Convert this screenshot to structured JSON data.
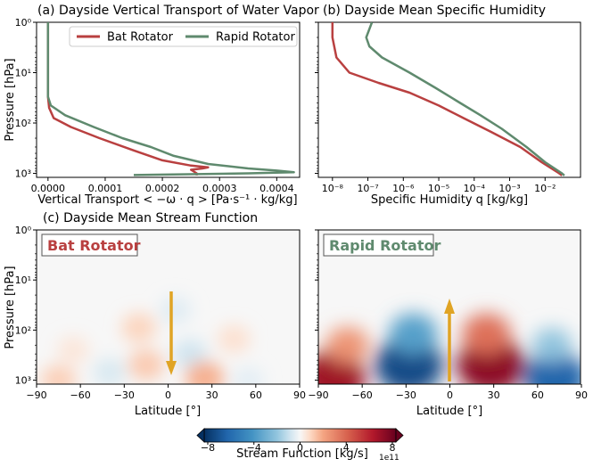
{
  "panels": {
    "a": {
      "title": "(a) Dayside Vertical Transport of Water Vapor",
      "xlabel": "Vertical Transport  < −ω · q > [Pa·s⁻¹ ·  kg/kg]",
      "ylabel": "Pressure [hPa]"
    },
    "b": {
      "title": "(b) Dayside Mean Specific Humidity",
      "xlabel": "Specific Humidity q [kg/kg]"
    },
    "c": {
      "title": "(c) Dayside Mean Stream Function",
      "ylabel": "Pressure [hPa]",
      "xlabel_left": "Latitude [°]",
      "xlabel_right": "Latitude [°]",
      "label_left": "Bat Rotator",
      "label_right": "Rapid Rotator"
    }
  },
  "legend": {
    "bat": "Bat Rotator",
    "rapid": "Rapid Rotator"
  },
  "colorbar": {
    "label": "Stream Function [kg/s]",
    "offset_text": "1e11",
    "ticks": [
      "−8",
      "−4",
      "0",
      "4",
      "8"
    ]
  },
  "pressure_ticks": [
    "10⁰",
    "10¹",
    "10²",
    "10³"
  ],
  "chart_data": [
    {
      "type": "line",
      "panel": "a",
      "title": "(a) Dayside Vertical Transport of Water Vapor",
      "xlabel": "Vertical Transport  < −ω · q > [Pa·s⁻¹ ·  kg/kg]",
      "ylabel": "Pressure [hPa]",
      "xlim": [
        -2e-05,
        0.00044
      ],
      "ylim": [
        1200,
        1
      ],
      "y_scale": "log",
      "x_ticks": [
        "0.0000",
        "0.0001",
        "0.0002",
        "0.0003",
        "0.0004"
      ],
      "colors": {
        "Bat Rotator": "#b94040",
        "Rapid Rotator": "#5f8a6e"
      },
      "legend_position": "top",
      "series": [
        {
          "name": "Bat Rotator",
          "points": [
            [
              0.0,
              1
            ],
            [
              0.0,
              10
            ],
            [
              0.0,
              30
            ],
            [
              2e-06,
              50
            ],
            [
              1e-05,
              80
            ],
            [
              4e-05,
              120
            ],
            [
              9e-05,
              200
            ],
            [
              0.00015,
              350
            ],
            [
              0.0002,
              550
            ],
            [
              0.00025,
              700
            ],
            [
              0.00028,
              760
            ],
            [
              0.00027,
              800
            ],
            [
              0.00025,
              850
            ],
            [
              0.00026,
              1000
            ],
            [
              0.00026,
              1100
            ]
          ]
        },
        {
          "name": "Rapid Rotator",
          "points": [
            [
              0.0,
              1
            ],
            [
              0.0,
              10
            ],
            [
              0.0,
              30
            ],
            [
              5e-06,
              45
            ],
            [
              3e-05,
              70
            ],
            [
              8e-05,
              120
            ],
            [
              0.00013,
              200
            ],
            [
              0.00018,
              300
            ],
            [
              0.00022,
              450
            ],
            [
              0.00028,
              650
            ],
            [
              0.00035,
              800
            ],
            [
              0.0004,
              880
            ],
            [
              0.00043,
              950
            ],
            [
              0.00035,
              1000
            ],
            [
              0.00015,
              1080
            ]
          ]
        }
      ]
    },
    {
      "type": "line",
      "panel": "b",
      "title": "(b) Dayside Mean Specific Humidity",
      "xlabel": "Specific Humidity q [kg/kg]",
      "x_scale": "log",
      "y_scale": "log",
      "xlim": [
        4e-09,
        0.1
      ],
      "ylim": [
        1200,
        1
      ],
      "x_ticks": [
        "10⁻⁸",
        "10⁻⁷",
        "10⁻⁶",
        "10⁻⁵",
        "10⁻⁴",
        "10⁻³",
        "10⁻²"
      ],
      "series": [
        {
          "name": "Bat Rotator",
          "points": [
            [
              1e-08,
              1
            ],
            [
              1e-08,
              2
            ],
            [
              1.3e-08,
              5
            ],
            [
              3e-08,
              10
            ],
            [
              2e-07,
              16
            ],
            [
              1.5e-06,
              25
            ],
            [
              1e-05,
              45
            ],
            [
              5e-05,
              80
            ],
            [
              0.0003,
              150
            ],
            [
              0.002,
              300
            ],
            [
              0.008,
              600
            ],
            [
              0.025,
              1000
            ],
            [
              0.03,
              1100
            ]
          ]
        },
        {
          "name": "Rapid Rotator",
          "points": [
            [
              1.3e-07,
              1
            ],
            [
              9e-08,
              2
            ],
            [
              1.1e-07,
              3
            ],
            [
              2.5e-07,
              5
            ],
            [
              1.5e-06,
              10
            ],
            [
              8e-06,
              20
            ],
            [
              4e-05,
              40
            ],
            [
              0.00015,
              70
            ],
            [
              0.0006,
              130
            ],
            [
              0.003,
              300
            ],
            [
              0.01,
              600
            ],
            [
              0.03,
              1000
            ],
            [
              0.035,
              1100
            ]
          ]
        }
      ]
    },
    {
      "type": "heatmap",
      "panel": "c",
      "title": "(c) Dayside Mean Stream Function",
      "xlabel": "Latitude [°]",
      "ylabel": "Pressure [hPa]",
      "xlim": [
        -90,
        90
      ],
      "ylim": [
        1200,
        1
      ],
      "y_scale": "log",
      "x_ticks": [
        -90,
        -60,
        -30,
        0,
        30,
        60,
        90
      ],
      "colorbar": {
        "label": "Stream Function [kg/s]",
        "scale": "1e11",
        "range": [
          -8,
          8
        ],
        "colormap": "RdBu_r"
      },
      "fields": [
        {
          "name": "Bat Rotator",
          "arrow": "down",
          "cells": [
            {
              "lat": -75,
              "p": 1000,
              "value": 1.2
            },
            {
              "lat": -65,
              "p": 250,
              "value": 0.6
            },
            {
              "lat": -40,
              "p": 700,
              "value": -0.8
            },
            {
              "lat": -20,
              "p": 90,
              "value": 1.1
            },
            {
              "lat": -15,
              "p": 500,
              "value": 1.3
            },
            {
              "lat": 5,
              "p": 40,
              "value": -0.6
            },
            {
              "lat": 15,
              "p": 300,
              "value": -1.0
            },
            {
              "lat": 25,
              "p": 900,
              "value": 1.8
            },
            {
              "lat": 45,
              "p": 150,
              "value": 0.8
            },
            {
              "lat": 55,
              "p": 1000,
              "value": -0.5
            }
          ]
        },
        {
          "name": "Rapid Rotator",
          "arrow": "up",
          "cells": [
            {
              "lat": -80,
              "p": 900,
              "value": 6.5
            },
            {
              "lat": -70,
              "p": 200,
              "value": 2.5
            },
            {
              "lat": -28,
              "p": 500,
              "value": -7.0
            },
            {
              "lat": -25,
              "p": 120,
              "value": -3.5
            },
            {
              "lat": 28,
              "p": 500,
              "value": 7.0
            },
            {
              "lat": 25,
              "p": 120,
              "value": 3.5
            },
            {
              "lat": 72,
              "p": 900,
              "value": -6.0
            },
            {
              "lat": 70,
              "p": 200,
              "value": -2.0
            }
          ]
        }
      ]
    }
  ]
}
